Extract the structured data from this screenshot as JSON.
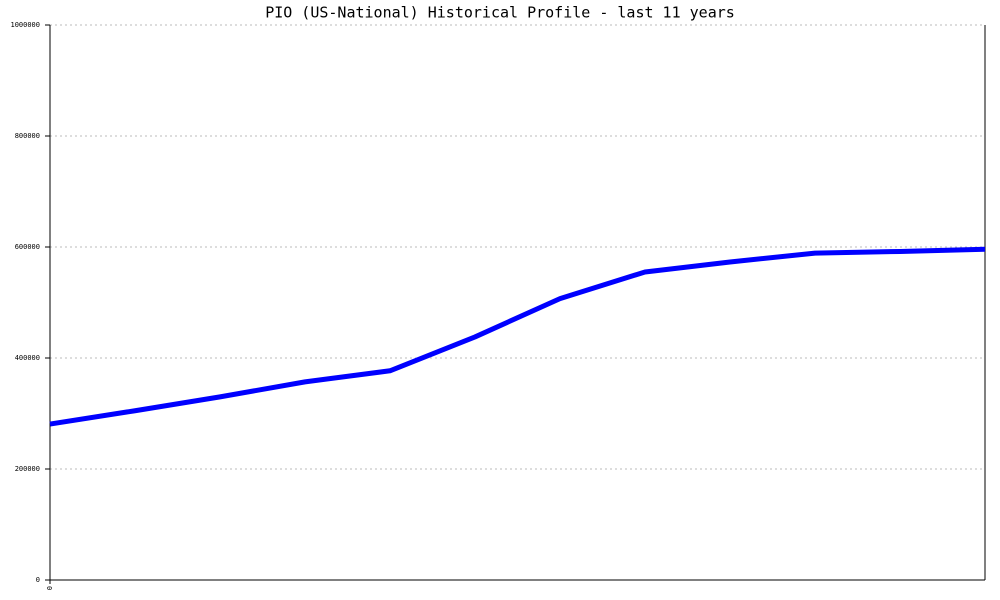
{
  "chart_data": {
    "type": "line",
    "title": "PIO (US-National) Historical Profile - last 11 years",
    "categories": [
      "0",
      null,
      null,
      null,
      null,
      null,
      null,
      null,
      null,
      null,
      null,
      null
    ],
    "series": [
      {
        "name": "PIO",
        "color": "#0000ff",
        "values": [
          281000,
          305000,
          330000,
          357000,
          377000,
          438000,
          507000,
          555000,
          573000,
          589000,
          592000,
          596000
        ]
      }
    ],
    "ylim": [
      0,
      1000000
    ],
    "yticks": [
      0,
      200000,
      400000,
      600000,
      800000,
      1000000
    ],
    "grid": true
  }
}
